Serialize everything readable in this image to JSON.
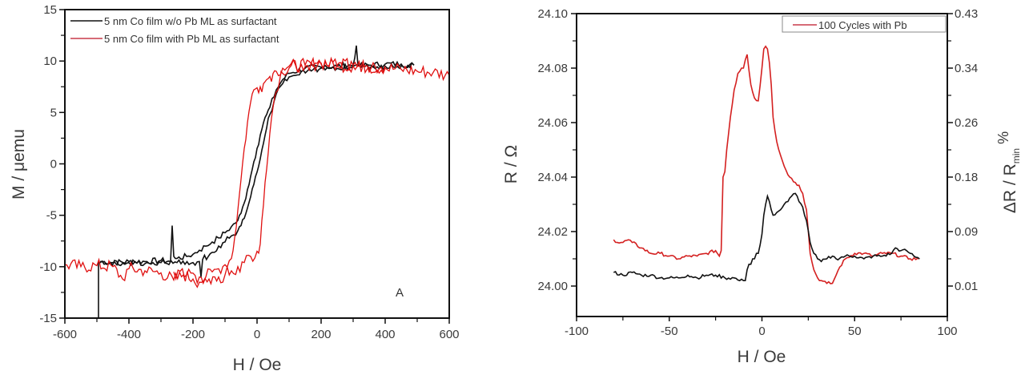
{
  "chart_data": [
    {
      "type": "line",
      "panel": "left",
      "title": "",
      "xlabel": "H / Oe",
      "ylabel": "M / μemu",
      "xlim": [
        -600,
        600
      ],
      "ylim": [
        -15,
        15
      ],
      "xticks": [
        -600,
        -400,
        -200,
        0,
        200,
        400,
        600
      ],
      "yticks": [
        -15,
        -10,
        -5,
        0,
        5,
        10,
        15
      ],
      "grid": false,
      "legend_position": "top-left inside",
      "annotation": "A",
      "series": [
        {
          "name": "5 nm Co film w/o Pb ML as surfactant",
          "color": "#111111",
          "branches": [
            {
              "x": [
                -490,
                -450,
                -400,
                -350,
                -300,
                -270,
                -265,
                -260,
                -255,
                -250,
                -220,
                -200,
                -180,
                -160,
                -140,
                -120,
                -100,
                -80,
                -60,
                -50,
                -40,
                -30,
                -20,
                -10,
                0,
                10,
                20,
                30,
                40,
                60,
                80,
                100,
                150,
                200,
                250,
                300,
                310,
                315,
                320,
                350,
                400,
                450,
                490
              ],
              "y": [
                -9.5,
                -9.6,
                -9.5,
                -9.5,
                -9.4,
                -9.5,
                -6.0,
                -9.0,
                -9.2,
                -9.2,
                -9.0,
                -8.8,
                -8.4,
                -8.0,
                -7.6,
                -7.2,
                -6.7,
                -6.1,
                -5.5,
                -4.8,
                -3.8,
                -2.5,
                -1.2,
                0.2,
                1.5,
                2.8,
                4.0,
                4.8,
                5.5,
                7.2,
                8.2,
                8.8,
                9.3,
                9.4,
                9.5,
                9.6,
                11.5,
                9.6,
                9.5,
                9.6,
                9.7,
                9.7,
                9.6
              ]
            },
            {
              "x": [
                490,
                400,
                300,
                200,
                120,
                80,
                60,
                40,
                30,
                20,
                10,
                0,
                -10,
                -20,
                -30,
                -40,
                -50,
                -60,
                -80,
                -100,
                -140,
                -170,
                -175,
                -180,
                -200,
                -250,
                -300,
                -400,
                -490,
                -495,
                -495
              ],
              "y": [
                9.6,
                9.5,
                9.5,
                9.3,
                8.6,
                7.8,
                6.8,
                4.8,
                3.5,
                2.0,
                0.5,
                -0.8,
                -2.0,
                -3.2,
                -4.3,
                -5.3,
                -6.0,
                -6.5,
                -7.0,
                -7.6,
                -8.6,
                -9.3,
                -11.0,
                -9.5,
                -9.6,
                -9.6,
                -9.6,
                -9.6,
                -9.6,
                -9.6,
                -15.0
              ]
            }
          ]
        },
        {
          "name": "5 nm Co film with Pb ML as surfactant",
          "color": "#e01010",
          "branches": [
            {
              "x": [
                -600,
                -550,
                -500,
                -450,
                -420,
                -400,
                -350,
                -300,
                -260,
                -230,
                -200,
                -180,
                -160,
                -140,
                -120,
                -100,
                -80,
                -70,
                -60,
                -50,
                -40,
                -30,
                -20,
                -10,
                0,
                10,
                20,
                30,
                40,
                50,
                60,
                80,
                100,
                150,
                200,
                250,
                300,
                350,
                400,
                450,
                500,
                550,
                600
              ],
              "y": [
                -9.8,
                -10.0,
                -9.9,
                -10.0,
                -11.2,
                -10.2,
                -10.4,
                -10.6,
                -11.3,
                -10.8,
                -11.2,
                -11.5,
                -11.0,
                -10.5,
                -10.2,
                -9.8,
                -9.2,
                -7.2,
                -4.5,
                -1.5,
                1.5,
                4.0,
                6.0,
                7.2,
                7.4,
                7.5,
                7.8,
                8.2,
                8.5,
                8.8,
                9.0,
                9.3,
                9.5,
                9.6,
                9.8,
                9.6,
                9.5,
                9.4,
                9.3,
                9.2,
                9.0,
                8.9,
                8.6
              ]
            },
            {
              "x": [
                400,
                300,
                200,
                120,
                100,
                80,
                70,
                60,
                50,
                40,
                30,
                20,
                15,
                10,
                0,
                -20,
                -40,
                -60,
                -80,
                -100,
                -120,
                -150,
                -180,
                -220,
                -260
              ],
              "y": [
                9.5,
                9.6,
                9.7,
                9.6,
                9.3,
                8.8,
                8.0,
                7.0,
                5.5,
                3.0,
                -0.5,
                -4.0,
                -5.5,
                -7.8,
                -8.5,
                -9.0,
                -9.6,
                -10.0,
                -10.4,
                -10.8,
                -11.0,
                -11.2,
                -11.0,
                -10.8,
                -10.5
              ]
            }
          ]
        }
      ]
    },
    {
      "type": "line",
      "panel": "right",
      "title": "",
      "xlabel": "H / Oe",
      "ylabel": "R / Ω",
      "ylabel_right": "ΔR / R_min %",
      "xlim": [
        -100,
        100
      ],
      "ylim": [
        23.989,
        24.1
      ],
      "ylim_right_ticks": [
        0.01,
        0.09,
        0.18,
        0.26,
        0.34,
        0.43
      ],
      "xticks": [
        -100,
        -50,
        0,
        50,
        100
      ],
      "yticks": [
        24.0,
        24.02,
        24.04,
        24.06,
        24.08,
        24.1
      ],
      "grid": false,
      "legend_position": "top-right inside",
      "series": [
        {
          "name": "100 Cycles with Pb",
          "color": "#d42020",
          "x": [
            -80,
            -78,
            -75,
            -72,
            -70,
            -65,
            -60,
            -55,
            -50,
            -45,
            -40,
            -35,
            -30,
            -25,
            -23,
            -22,
            -21,
            -20,
            -19,
            -17,
            -15,
            -13,
            -11,
            -10,
            -9,
            -8,
            -6,
            -4,
            -2,
            0,
            1,
            2,
            3,
            4,
            5,
            6,
            8,
            10,
            12,
            15,
            18,
            20,
            22,
            24,
            26,
            28,
            30,
            32,
            35,
            38,
            40,
            42,
            45,
            50,
            55,
            60,
            65,
            70,
            75,
            80,
            85
          ],
          "y": [
            24.017,
            24.016,
            24.016,
            24.017,
            24.016,
            24.014,
            24.012,
            24.012,
            24.011,
            24.01,
            24.011,
            24.011,
            24.012,
            24.013,
            24.011,
            24.013,
            24.04,
            24.042,
            24.05,
            24.062,
            24.072,
            24.078,
            24.08,
            24.08,
            24.083,
            24.085,
            24.074,
            24.069,
            24.068,
            24.08,
            24.087,
            24.088,
            24.087,
            24.082,
            24.074,
            24.062,
            24.053,
            24.048,
            24.044,
            24.04,
            24.038,
            24.037,
            24.034,
            24.028,
            24.012,
            24.006,
            24.003,
            24.002,
            24.001,
            24.001,
            24.004,
            24.007,
            24.01,
            24.012,
            24.012,
            24.011,
            24.012,
            24.012,
            24.011,
            24.01,
            24.01
          ]
        },
        {
          "name": "unlabeled black curve",
          "color": "#111111",
          "x": [
            -80,
            -75,
            -70,
            -65,
            -60,
            -55,
            -50,
            -45,
            -40,
            -35,
            -30,
            -25,
            -20,
            -15,
            -12,
            -10,
            -9,
            -8,
            -7,
            -6,
            -5,
            -4,
            -3,
            -2,
            0,
            1,
            2,
            3,
            4,
            5,
            6,
            8,
            10,
            12,
            14,
            16,
            18,
            19,
            20,
            22,
            24,
            26,
            28,
            30,
            32,
            35,
            38,
            40,
            45,
            50,
            55,
            60,
            65,
            70,
            72,
            75,
            78,
            80,
            82,
            85
          ],
          "y": [
            24.005,
            24.004,
            24.005,
            24.004,
            24.004,
            24.003,
            24.003,
            24.003,
            24.004,
            24.003,
            24.004,
            24.004,
            24.003,
            24.003,
            24.002,
            24.002,
            24.002,
            24.006,
            24.008,
            24.008,
            24.01,
            24.01,
            24.012,
            24.012,
            24.019,
            24.026,
            24.03,
            24.033,
            24.031,
            24.028,
            24.026,
            24.027,
            24.028,
            24.03,
            24.031,
            24.033,
            24.034,
            24.033,
            24.031,
            24.029,
            24.024,
            24.016,
            24.012,
            24.01,
            24.009,
            24.01,
            24.011,
            24.01,
            24.011,
            24.011,
            24.01,
            24.011,
            24.011,
            24.012,
            24.014,
            24.013,
            24.013,
            24.012,
            24.011,
            24.01
          ]
        }
      ]
    }
  ],
  "labels": {
    "left_xlabel": "H / Oe",
    "left_ylabel": "M / μemu",
    "left_annotation": "A",
    "left_legend_1": "5 nm Co film w/o Pb ML as surfactant",
    "left_legend_2": "5 nm Co film with Pb ML as surfactant",
    "right_xlabel": "H / Oe",
    "right_ylabel": "R / Ω",
    "right_ylabel2_main": "ΔR / R",
    "right_ylabel2_sub": "min",
    "right_ylabel2_suffix": "%",
    "right_legend": "100 Cycles with Pb"
  }
}
